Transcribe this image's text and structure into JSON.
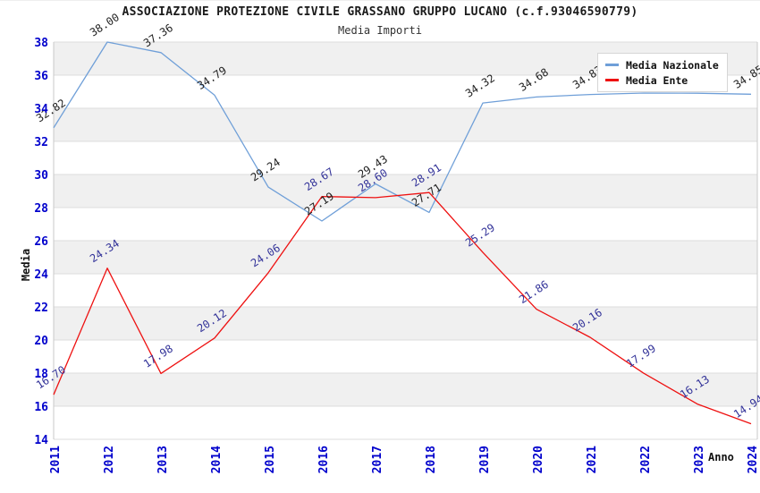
{
  "header": {
    "title": "ASSOCIAZIONE PROTEZIONE CIVILE GRASSANO GRUPPO LUCANO (c.f.93046590779)",
    "subtitle": "Media Importi"
  },
  "axes": {
    "y_label": "Media",
    "x_label": "Anno",
    "y_ticks": [
      14,
      16,
      18,
      20,
      22,
      24,
      26,
      28,
      30,
      32,
      34,
      36,
      38
    ],
    "x_ticks": [
      "2011",
      "2012",
      "2013",
      "2014",
      "2015",
      "2016",
      "2017",
      "2018",
      "2019",
      "2020",
      "2021",
      "2022",
      "2023",
      "2024"
    ]
  },
  "legend": {
    "items": [
      {
        "label": "Media Nazionale",
        "color": "#6F9FD8"
      },
      {
        "label": "Media Ente",
        "color": "#EE1111"
      }
    ]
  },
  "colors": {
    "tick_label": "#0000CC",
    "gridline": "#DCDCDC",
    "spine": "#C9C9C9",
    "band_fill": "#F0F0F0",
    "nazionale_line": "#6F9FD8",
    "ente_line": "#EE1111",
    "nazionale_value_label": "#1F1F1F",
    "ente_value_label": "#333399",
    "background": "#FFFFFF"
  },
  "chart_data": {
    "type": "line",
    "title": "ASSOCIAZIONE PROTEZIONE CIVILE GRASSANO GRUPPO LUCANO (c.f.93046590779)",
    "subtitle": "Media Importi",
    "xlabel": "Anno",
    "ylabel": "Media",
    "x": [
      2011,
      2012,
      2013,
      2014,
      2015,
      2016,
      2017,
      2018,
      2019,
      2020,
      2021,
      2022,
      2023,
      2024
    ],
    "series": [
      {
        "name": "Media Nazionale",
        "values": [
          32.82,
          38.0,
          37.36,
          34.79,
          29.24,
          27.19,
          29.43,
          27.71,
          34.32,
          34.68,
          34.83,
          34.92,
          34.91,
          34.85
        ]
      },
      {
        "name": "Media Ente",
        "values": [
          16.7,
          24.34,
          17.98,
          20.12,
          24.06,
          28.67,
          28.6,
          28.91,
          25.29,
          21.86,
          20.16,
          17.99,
          16.13,
          14.94
        ]
      }
    ],
    "ylim": [
      14,
      38
    ],
    "y_tick_step": 2,
    "grid": "horizontal gridlines with alternating gray bands every 2 units (16-18, 20-22, 24-26, 28-30, 32-34, 36-38)",
    "legend_position": "top-right inside plot",
    "point_value_labels": "each point labeled with value rotated ~33deg",
    "note": "Media Nazionale labels for 2022 and 2023 are hidden behind the legend box; their values are estimated from the line position (~34.9). 2021 label partially covered, reads 34.8x (34.83)."
  }
}
